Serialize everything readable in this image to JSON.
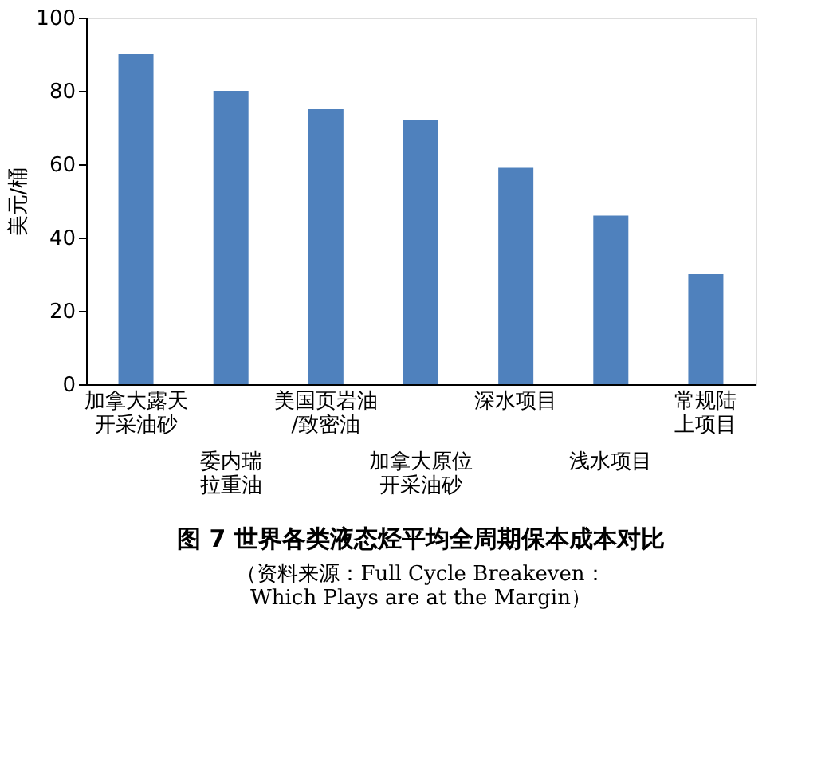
{
  "chart_data": {
    "type": "bar",
    "title": "图 7  世界各类液态烃平均全周期保本成本对比",
    "ylabel": "美元/桶",
    "annotations": [
      "（资料来源：Full Cycle Breakeven： Which Plays are at the Margin）"
    ],
    "categories": [
      "加拿大露天开采油砂",
      "委内瑞拉重油",
      "美国页岩油/致密油",
      "加拿大原位开采油砂",
      "深水项目",
      "浅水项目",
      "常规陆上项目"
    ],
    "values": [
      90,
      80,
      75,
      72,
      59,
      46,
      30
    ],
    "color": "#4f81bd",
    "ylim": [
      0,
      100
    ],
    "yticks": [
      0,
      20,
      40,
      60,
      80,
      100
    ],
    "grid": false
  }
}
